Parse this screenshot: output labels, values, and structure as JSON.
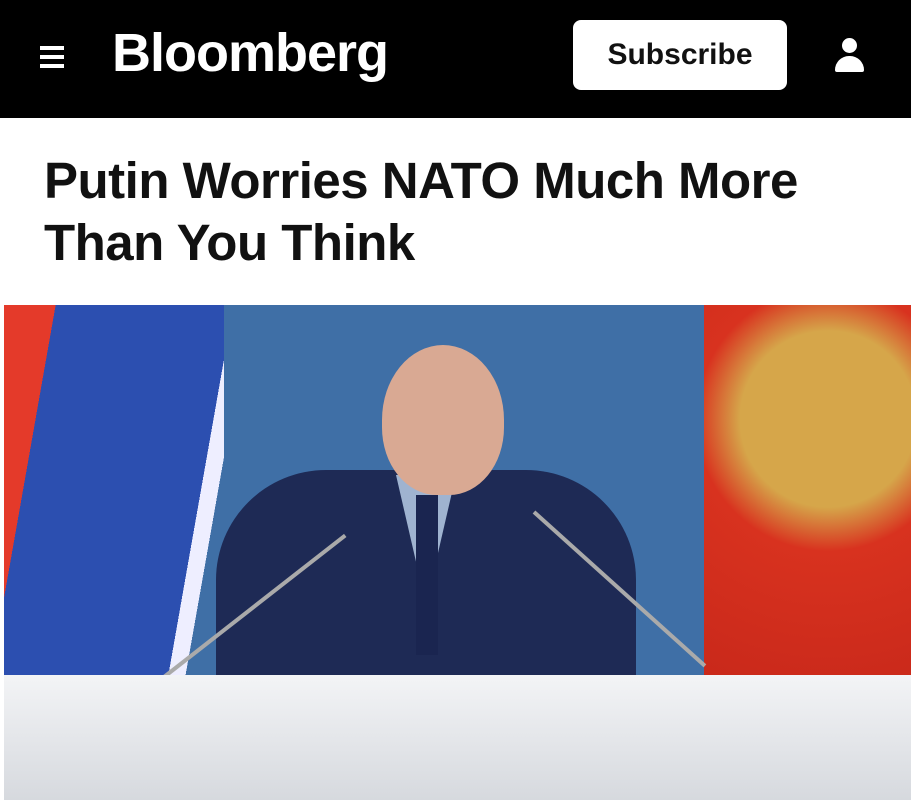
{
  "header": {
    "brand": "Bloomberg",
    "subscribe_label": "Subscribe",
    "menu_icon": "hamburger-icon",
    "account_icon": "user-icon"
  },
  "article": {
    "headline": "Putin Worries NATO Much More Than You Think",
    "image_alt": "Vladimir Putin seated at a desk with microphones, Russian flags behind"
  },
  "colors": {
    "topbar": "#000000",
    "accent": "#ffffff"
  }
}
